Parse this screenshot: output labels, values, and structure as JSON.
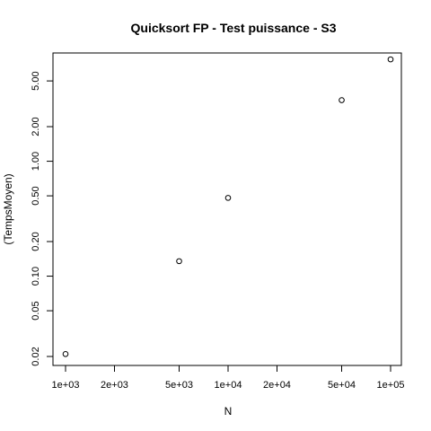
{
  "chart_data": {
    "type": "scatter",
    "title": "Quicksort FP - Test puissance - S3",
    "xlabel": "N",
    "ylabel": "(TempsMoyen)",
    "x_scale": "log",
    "y_scale": "log",
    "xlim": [
      1000,
      100000
    ],
    "ylim": [
      0.02,
      8.0
    ],
    "x_ticks": [
      {
        "value": 1000,
        "label": "1e+03"
      },
      {
        "value": 2000,
        "label": "2e+03"
      },
      {
        "value": 5000,
        "label": "5e+03"
      },
      {
        "value": 10000,
        "label": "1e+04"
      },
      {
        "value": 20000,
        "label": "2e+04"
      },
      {
        "value": 50000,
        "label": "5e+04"
      },
      {
        "value": 100000,
        "label": "1e+05"
      }
    ],
    "y_ticks": [
      {
        "value": 0.02,
        "label": "0.02"
      },
      {
        "value": 0.05,
        "label": "0.05"
      },
      {
        "value": 0.1,
        "label": "0.10"
      },
      {
        "value": 0.2,
        "label": "0.20"
      },
      {
        "value": 0.5,
        "label": "0.50"
      },
      {
        "value": 1,
        "label": "1.00"
      },
      {
        "value": 2,
        "label": "2.00"
      },
      {
        "value": 5,
        "label": "5.00"
      },
      {
        "value": 10,
        "label": ""
      }
    ],
    "points": [
      {
        "x": 1000,
        "y": 0.021
      },
      {
        "x": 5000,
        "y": 0.135
      },
      {
        "x": 10000,
        "y": 0.48
      },
      {
        "x": 50000,
        "y": 3.4
      },
      {
        "x": 100000,
        "y": 7.7
      }
    ],
    "grid": false,
    "marker": "open-circle",
    "colors": {
      "ink": "#000000",
      "background": "#ffffff"
    }
  }
}
